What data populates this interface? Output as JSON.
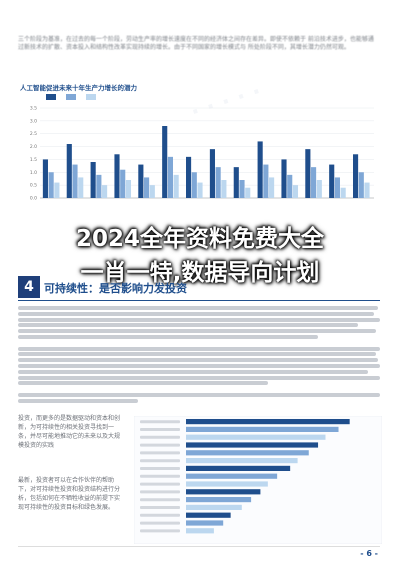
{
  "intro": {
    "text": "三个阶段为基准，在过去的每一个阶段，劳动生产率的增长速度在不同的经济体之间存在差异。即使不依赖于 前沿技术进步，也能够通过新技术的扩散、资本投入和结构性改革实现持续的增长。由于不同国家的增长模式与 所处阶段不同，其增长潜力仍然可观。"
  },
  "headline": {
    "line1": "2024全年资料免费大全",
    "line2": "一肖一特,数据导向计划"
  },
  "section": {
    "number": "4",
    "title": "可持续性：是否影响力发投资"
  },
  "notes": [
    "投资，而更多的是数据驱动和资本和创新，为可持续性的相关投资寻找到一条，并尽可能地推动它的未来以及大规模投资的实践",
    "最新，投资者可以在合作伙伴的帮助下，对可持续性投资和投资结构进行分析，包括如何在不牺牲收益的前提下实现可持续性的投资目标和绿色发展。"
  ],
  "page_number": "- 6 -",
  "colors": {
    "series1": "#1f4e8c",
    "series2": "#7fa7d6",
    "series3": "#bcd7ef",
    "accent": "#1f3f7a"
  },
  "chart_data": [
    {
      "type": "bar",
      "title": "人工智能促进未来十年生产力增长的潜力",
      "ylabel": "",
      "ylim": [
        0,
        3.5
      ],
      "yticks": [
        "0.0",
        "0.5",
        "1.0",
        "1.5",
        "2.0",
        "2.5",
        "3.0",
        "3.5"
      ],
      "series": [
        {
          "values": [
            1.5,
            2.1,
            1.4,
            1.7,
            1.3,
            2.8,
            1.6,
            1.9,
            1.2,
            2.2,
            1.5,
            1.9,
            1.3,
            1.7
          ]
        },
        {
          "values": [
            1.0,
            1.3,
            0.9,
            1.1,
            0.8,
            1.6,
            1.0,
            1.2,
            0.7,
            1.3,
            0.9,
            1.2,
            0.8,
            1.0
          ]
        },
        {
          "values": [
            0.6,
            0.8,
            0.5,
            0.7,
            0.5,
            0.9,
            0.6,
            0.7,
            0.4,
            0.8,
            0.5,
            0.7,
            0.4,
            0.6
          ]
        }
      ]
    },
    {
      "type": "bar",
      "title": "",
      "orientation": "horizontal",
      "values": [
        88,
        82,
        75,
        71,
        66,
        60,
        56,
        49,
        44,
        40,
        35,
        30,
        24,
        20,
        15
      ]
    }
  ]
}
